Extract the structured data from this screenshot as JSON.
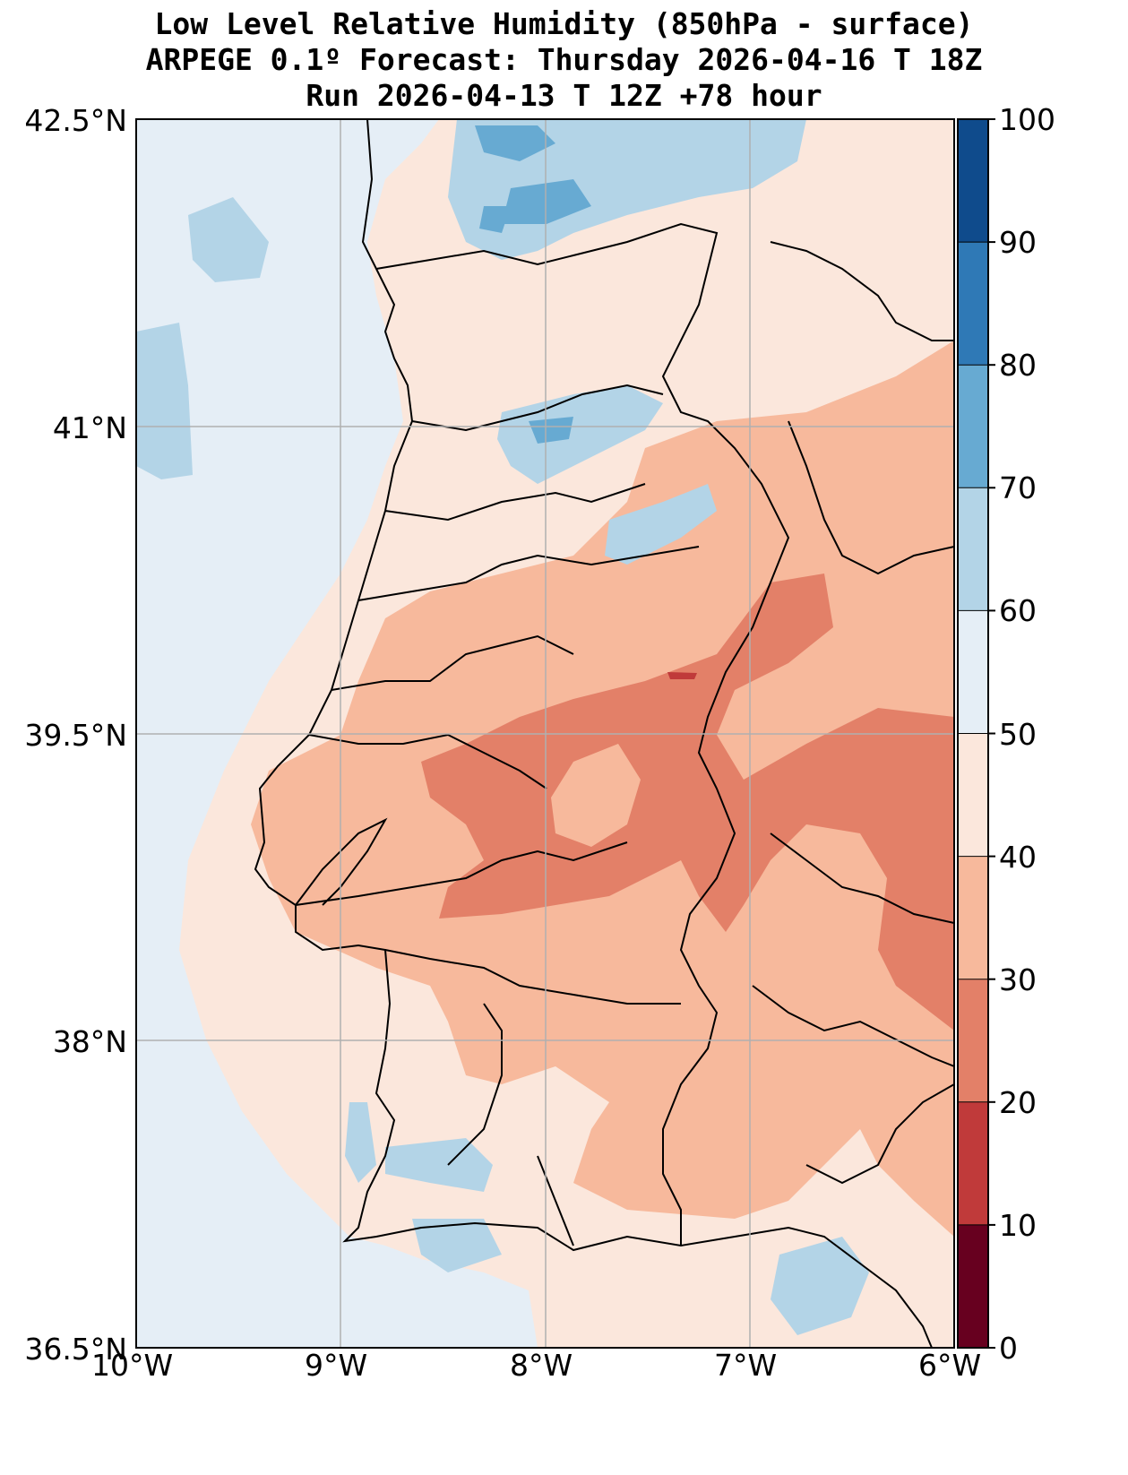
{
  "title": {
    "line1": "Low Level Relative Humidity (850hPa - surface)",
    "line2": "ARPEGE 0.1º Forecast: Thursday 2026-04-16 T 18Z",
    "line3": "Run 2026-04-13 T 12Z +78 hour"
  },
  "map": {
    "lat_range": [
      36.5,
      42.5
    ],
    "lon_range": [
      -10,
      -6
    ],
    "lat_ticks": [
      {
        "value": 42.5,
        "label": "42.5°N"
      },
      {
        "value": 41,
        "label": "41°N"
      },
      {
        "value": 39.5,
        "label": "39.5°N"
      },
      {
        "value": 38,
        "label": "38°N"
      },
      {
        "value": 36.5,
        "label": "36.5°N"
      }
    ],
    "lon_ticks": [
      {
        "value": -10,
        "label": "10°W"
      },
      {
        "value": -9,
        "label": "9°W"
      },
      {
        "value": -8,
        "label": "8°W"
      },
      {
        "value": -7,
        "label": "7°W"
      },
      {
        "value": -6,
        "label": "6°W"
      }
    ]
  },
  "colorbar": {
    "levels": [
      {
        "value": 100,
        "label": "100"
      },
      {
        "value": 90,
        "label": "90"
      },
      {
        "value": 80,
        "label": "80"
      },
      {
        "value": 70,
        "label": "70"
      },
      {
        "value": 60,
        "label": "60"
      },
      {
        "value": 50,
        "label": "50"
      },
      {
        "value": 40,
        "label": "40"
      },
      {
        "value": 30,
        "label": "30"
      },
      {
        "value": 20,
        "label": "20"
      },
      {
        "value": 10,
        "label": "10"
      },
      {
        "value": 0,
        "label": "0"
      }
    ],
    "colors": [
      "#67001f",
      "#c03a3a",
      "#e38068",
      "#f7b99c",
      "#fbe7dc",
      "#e5eef6",
      "#b3d4e7",
      "#67aad2",
      "#2f79b6",
      "#0f4b8c"
    ]
  }
}
